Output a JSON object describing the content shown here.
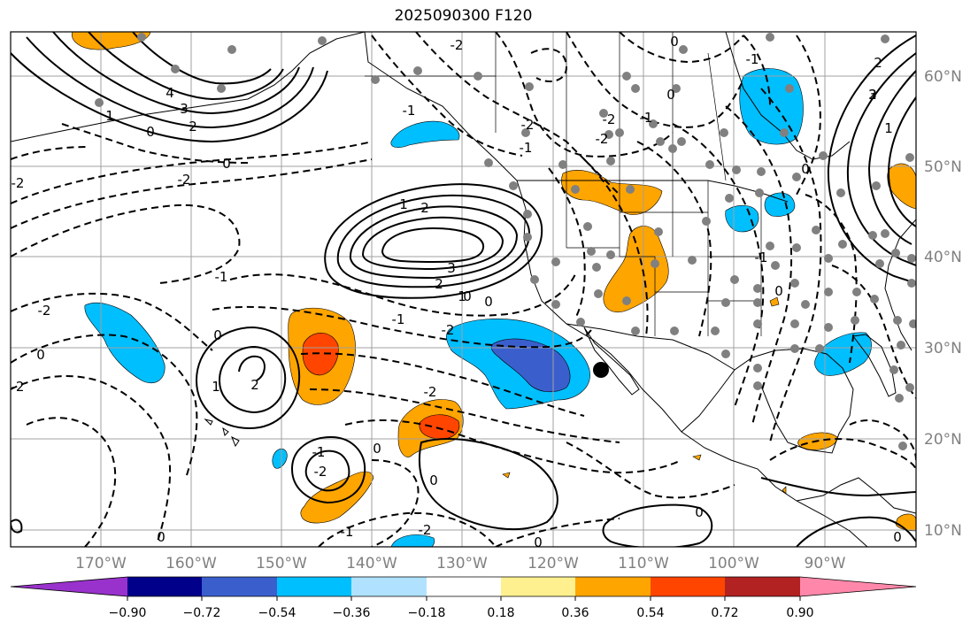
{
  "title": "2025090300 F120",
  "lat_labels": [
    "60°N",
    "50°N",
    "40°N",
    "30°N",
    "20°N",
    "10°N"
  ],
  "lon_labels": [
    "170°W",
    "160°W",
    "150°W",
    "140°W",
    "130°W",
    "120°W",
    "110°W",
    "100°W",
    "90°W"
  ],
  "colorbar": {
    "colors": [
      "#9932cc",
      "#00008b",
      "#3a5fcd",
      "#00bfff",
      "#b0e2ff",
      "#ffffff",
      "#fff08f",
      "#ffa500",
      "#ff4500",
      "#b22222",
      "#ff88aa"
    ],
    "tick_labels": [
      "−0.90",
      "−0.72",
      "−0.54",
      "−0.36",
      "−0.18",
      "0.18",
      "0.36",
      "0.54",
      "0.72",
      "0.90"
    ]
  },
  "contour_labels": [
    "0",
    "1",
    "2",
    "3",
    "4",
    "0",
    "-2",
    "-1",
    "-2",
    "0",
    "-2",
    "1",
    "2",
    "3",
    "2",
    "1",
    "0",
    "0",
    "-1",
    "-2",
    "-2",
    "0",
    "1",
    "2",
    "-2",
    "0",
    "0",
    "-1",
    "-2",
    "0",
    "2",
    "1",
    "0",
    "-1",
    "0",
    "-2",
    "-1",
    "2",
    "3",
    "-1",
    "-2",
    "0",
    "-1",
    "0",
    "0",
    "-1",
    "-2",
    "-1",
    "0",
    "0",
    "-2",
    "-2"
  ],
  "markers": {
    "highlight": "black-dot"
  }
}
